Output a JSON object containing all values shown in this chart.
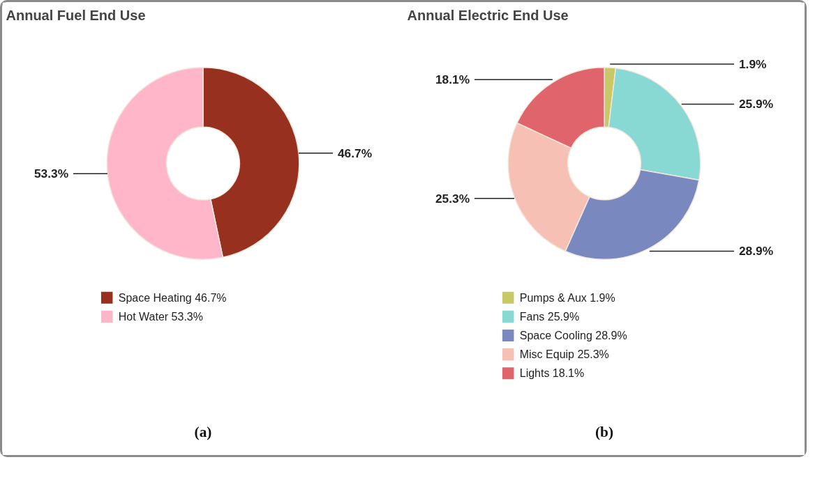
{
  "chart_data": [
    {
      "type": "donut",
      "title": "Annual Fuel End Use",
      "categories": [
        "Space Heating",
        "Hot Water"
      ],
      "values": [
        46.7,
        53.3
      ],
      "colors": [
        "#97301f",
        "#ffb6c8"
      ],
      "value_labels": [
        "46.7%",
        "53.3%"
      ],
      "legend": "bottom",
      "annotations": [
        "(a)"
      ]
    },
    {
      "type": "donut",
      "title": "Annual Electric End Use",
      "categories": [
        "Pumps & Aux",
        "Fans",
        "Space Cooling",
        "Misc Equip",
        "Lights"
      ],
      "values": [
        1.9,
        25.9,
        28.9,
        25.3,
        18.1
      ],
      "colors": [
        "#c8c864",
        "#88d8d4",
        "#7a88c0",
        "#f6c0b4",
        "#e0646c"
      ],
      "value_labels": [
        "1.9%",
        "25.9%",
        "28.9%",
        "25.3%",
        "18.1%"
      ],
      "legend": "bottom",
      "annotations": [
        "(b)"
      ]
    }
  ]
}
